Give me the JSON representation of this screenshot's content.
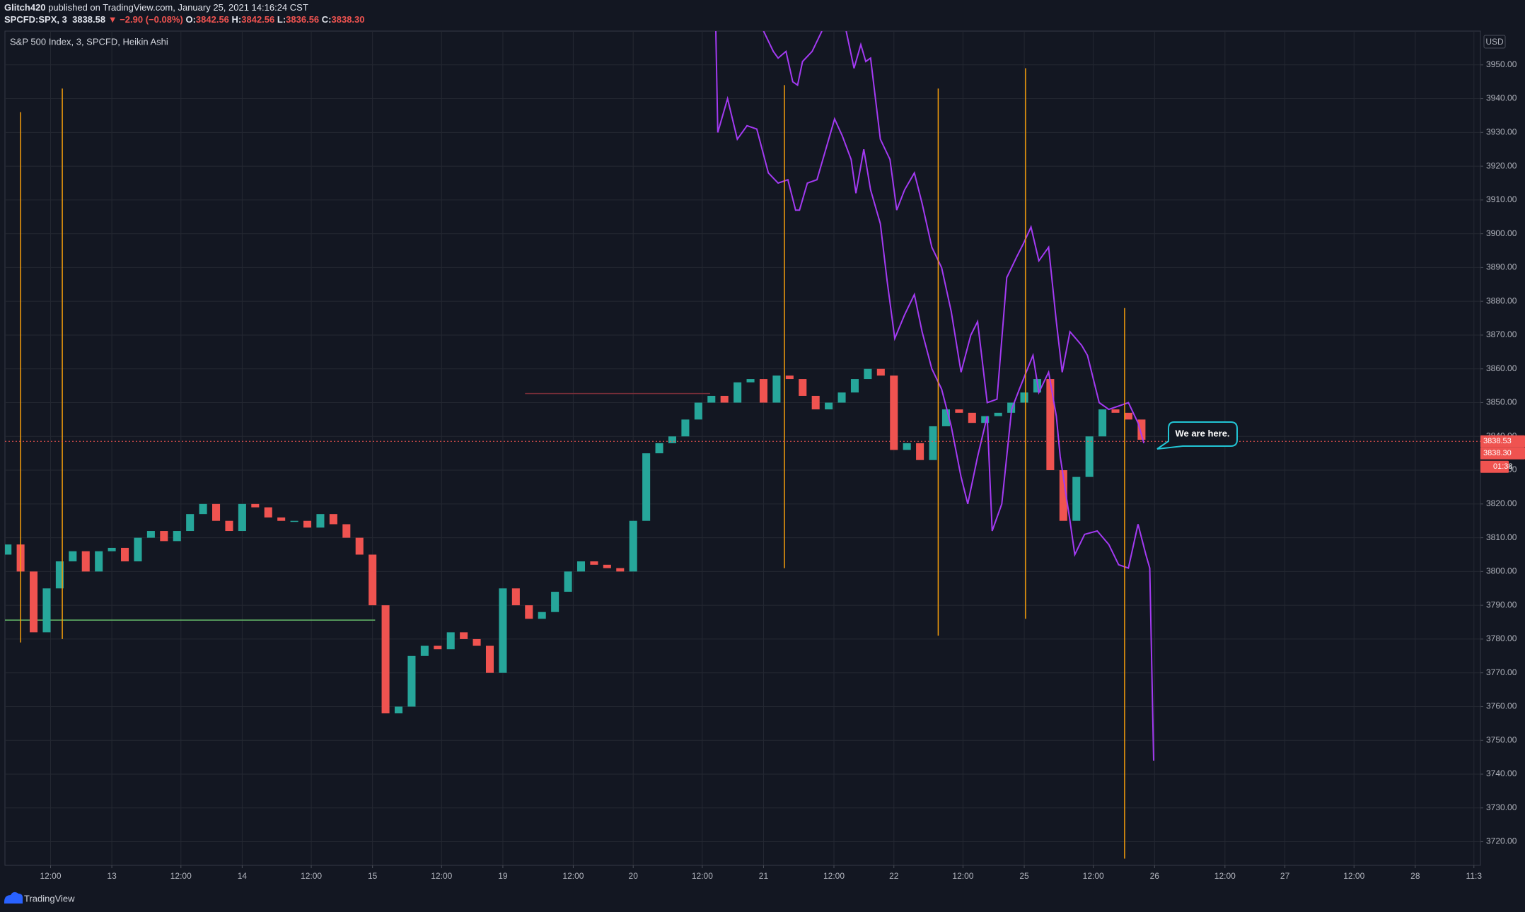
{
  "header": {
    "publisher": "Glitch420",
    "published": "published on TradingView.com, January 25, 2021 14:16:24 CST",
    "symbol": "SPCFD:SPX, 3",
    "last": "3838.58",
    "change": "▼ −2.90 (−0.08%)",
    "ohlc": [
      {
        "label": "O:",
        "value": "3842.56"
      },
      {
        "label": "H:",
        "value": "3842.56"
      },
      {
        "label": "L:",
        "value": "3836.56"
      },
      {
        "label": "C:",
        "value": "3838.30"
      }
    ]
  },
  "footer": {
    "brand": "TradingView"
  },
  "chart_data": {
    "type": "candlestick",
    "legend": "S&P 500 Index, 3, SPCFD, Heikin Ashi",
    "currency": "USD",
    "annotation": "We are here.",
    "up_color": "#26a69a",
    "down_color": "#ef5350",
    "grid": true,
    "xlim": [
      0.18,
      11.5
    ],
    "ylim": [
      3713,
      3960
    ],
    "xticks": [
      {
        "value": 0.53,
        "label": "12:00"
      },
      {
        "value": 1,
        "label": "13"
      },
      {
        "value": 1.53,
        "label": "12:00"
      },
      {
        "value": 2,
        "label": "14"
      },
      {
        "value": 2.53,
        "label": "12:00"
      },
      {
        "value": 3,
        "label": "15"
      },
      {
        "value": 3.53,
        "label": "12:00"
      },
      {
        "value": 4,
        "label": "19"
      },
      {
        "value": 4.54,
        "label": "12:00"
      },
      {
        "value": 5,
        "label": "20"
      },
      {
        "value": 5.53,
        "label": "12:00"
      },
      {
        "value": 6,
        "label": "21"
      },
      {
        "value": 6.54,
        "label": "12:00"
      },
      {
        "value": 7,
        "label": "22"
      },
      {
        "value": 7.53,
        "label": "12:00"
      },
      {
        "value": 8,
        "label": "25"
      },
      {
        "value": 8.53,
        "label": "12:00"
      },
      {
        "value": 9,
        "label": "26"
      },
      {
        "value": 9.54,
        "label": "12:00"
      },
      {
        "value": 10,
        "label": "27"
      },
      {
        "value": 10.53,
        "label": "12:00"
      },
      {
        "value": 11,
        "label": "28"
      },
      {
        "value": 11.45,
        "label": "11:3"
      }
    ],
    "yticks": [
      {
        "value": 3720,
        "label": "3720.00"
      },
      {
        "value": 3730,
        "label": "3730.00"
      },
      {
        "value": 3740,
        "label": "3740.00"
      },
      {
        "value": 3750,
        "label": "3750.00"
      },
      {
        "value": 3760,
        "label": "3760.00"
      },
      {
        "value": 3770,
        "label": "3770.00"
      },
      {
        "value": 3780,
        "label": "3780.00"
      },
      {
        "value": 3790,
        "label": "3790.00"
      },
      {
        "value": 3800,
        "label": "3800.00"
      },
      {
        "value": 3810,
        "label": "3810.00"
      },
      {
        "value": 3820,
        "label": "3820.00"
      },
      {
        "value": 3830,
        "label": "3830.00"
      },
      {
        "value": 3840,
        "label": "3840.00"
      },
      {
        "value": 3850,
        "label": "3850.00"
      },
      {
        "value": 3860,
        "label": "3860.00"
      },
      {
        "value": 3870,
        "label": "3870.00"
      },
      {
        "value": 3880,
        "label": "3880.00"
      },
      {
        "value": 3890,
        "label": "3890.00"
      },
      {
        "value": 3900,
        "label": "3900.00"
      },
      {
        "value": 3910,
        "label": "3910.00"
      },
      {
        "value": 3920,
        "label": "3920.00"
      },
      {
        "value": 3930,
        "label": "3930.00"
      },
      {
        "value": 3940,
        "label": "3940.00"
      },
      {
        "value": 3950,
        "label": "3950.00"
      }
    ],
    "x": [
      0.2,
      0.3,
      0.4,
      0.5,
      0.6,
      0.7,
      0.8,
      0.9,
      1.0,
      1.1,
      1.2,
      1.3,
      1.4,
      1.5,
      1.6,
      1.7,
      1.8,
      1.9,
      2.0,
      2.1,
      2.2,
      2.3,
      2.4,
      2.5,
      2.6,
      2.7,
      2.8,
      2.9,
      3.0,
      3.1,
      3.2,
      3.3,
      3.4,
      3.5,
      3.6,
      3.7,
      3.8,
      3.9,
      4.0,
      4.1,
      4.2,
      4.3,
      4.4,
      4.5,
      4.6,
      4.7,
      4.8,
      4.9,
      5.0,
      5.1,
      5.2,
      5.3,
      5.4,
      5.5,
      5.6,
      5.7,
      5.8,
      5.9,
      6.0,
      6.1,
      6.2,
      6.3,
      6.4,
      6.5,
      6.6,
      6.7,
      6.8,
      6.9,
      7.0,
      7.1,
      7.2,
      7.3,
      7.4,
      7.5,
      7.6,
      7.7,
      7.8,
      7.9,
      8.0,
      8.1,
      8.2,
      8.3,
      8.4,
      8.5,
      8.6,
      8.7,
      8.8,
      8.9
    ],
    "open": [
      3805,
      3808,
      3800,
      3782,
      3795,
      3803,
      3806,
      3800,
      3806,
      3807,
      3803,
      3810,
      3812,
      3809,
      3812,
      3817,
      3820,
      3815,
      3812,
      3820,
      3819,
      3816,
      3815,
      3815,
      3813,
      3817,
      3814,
      3810,
      3805,
      3790,
      3758,
      3760,
      3775,
      3778,
      3777,
      3782,
      3780,
      3778,
      3770,
      3795,
      3790,
      3786,
      3788,
      3794,
      3800,
      3803,
      3802,
      3801,
      3800,
      3815,
      3835,
      3838,
      3840,
      3845,
      3850,
      3852,
      3850,
      3856,
      3857,
      3850,
      3858,
      3857,
      3852,
      3848,
      3850,
      3853,
      3857,
      3860,
      3858,
      3836,
      3838,
      3833,
      3843,
      3848,
      3847,
      3844,
      3846,
      3847,
      3850,
      3853,
      3857,
      3830,
      3815,
      3828,
      3840,
      3848,
      3847,
      3845
    ],
    "close": [
      3808,
      3800,
      3782,
      3795,
      3803,
      3806,
      3800,
      3806,
      3807,
      3803,
      3810,
      3812,
      3809,
      3812,
      3817,
      3820,
      3815,
      3812,
      3820,
      3819,
      3816,
      3815,
      3815,
      3813,
      3817,
      3814,
      3810,
      3805,
      3790,
      3758,
      3760,
      3775,
      3778,
      3777,
      3782,
      3780,
      3778,
      3770,
      3795,
      3790,
      3786,
      3788,
      3794,
      3800,
      3803,
      3802,
      3801,
      3800,
      3815,
      3835,
      3838,
      3840,
      3845,
      3850,
      3852,
      3850,
      3856,
      3857,
      3850,
      3858,
      3857,
      3852,
      3848,
      3850,
      3853,
      3857,
      3860,
      3858,
      3836,
      3838,
      3833,
      3843,
      3848,
      3847,
      3844,
      3846,
      3847,
      3850,
      3853,
      3857,
      3830,
      3815,
      3828,
      3840,
      3848,
      3847,
      3845,
      3839
    ],
    "lines": [
      {
        "color": "#a33af2",
        "x": [
          5.634,
          5.649,
          5.724,
          5.799,
          5.873,
          5.948,
          6.037,
          6.112,
          6.187,
          6.246,
          6.276,
          6.336,
          6.41,
          6.485,
          6.545,
          6.604,
          6.672,
          6.709,
          6.769,
          6.821,
          6.896,
          6.948,
          7.007,
          7.082,
          7.157,
          7.216,
          7.291,
          7.366,
          7.44,
          7.515,
          7.567,
          7.642,
          7.716,
          7.754,
          7.828,
          7.903,
          7.963,
          8.015,
          8.067,
          8.112,
          8.187,
          8.246,
          8.276,
          8.351,
          8.388,
          8.463,
          8.56,
          8.649,
          8.724,
          8.799,
          8.873,
          8.933,
          8.963,
          8.993
        ],
        "values": [
          3960,
          3930,
          3940,
          3928,
          3932,
          3931,
          3918,
          3915,
          3916,
          3907,
          3907,
          3915,
          3916,
          3926,
          3934,
          3929,
          3922,
          3912,
          3925,
          3913,
          3903,
          3886,
          3869,
          3876,
          3882,
          3871,
          3860,
          3854,
          3843,
          3828,
          3820,
          3834,
          3846,
          3812,
          3820,
          3848,
          3854,
          3859,
          3864,
          3853,
          3859,
          3846,
          3834,
          3815,
          3805,
          3811,
          3812,
          3808,
          3802,
          3801,
          3814,
          3805,
          3801,
          3744
        ]
      },
      {
        "color": "#a33af2",
        "x": [
          6.0,
          6.075,
          6.112,
          6.172,
          6.224,
          6.261,
          6.299,
          6.373,
          6.448,
          6.54,
          6.634,
          6.694,
          6.746,
          6.784,
          6.821,
          6.896,
          6.97,
          7.022,
          7.082,
          7.157,
          7.216,
          7.291,
          7.366,
          7.44,
          7.515,
          7.59,
          7.642,
          7.716,
          7.791,
          7.866,
          7.94,
          7.993,
          8.052,
          8.112,
          8.187,
          8.246,
          8.291,
          8.351,
          8.44,
          8.485,
          8.575,
          8.649,
          8.724,
          8.799,
          8.873,
          8.918
        ],
        "values": [
          3960,
          3954,
          3952,
          3954,
          3945,
          3944,
          3951,
          3954,
          3960,
          null,
          3960,
          3949,
          3956,
          3951,
          3952,
          3928,
          3922,
          3907,
          3913,
          3918,
          3909,
          3896,
          3890,
          3877,
          3859,
          3870,
          3874,
          3850,
          3851,
          3887,
          3893,
          3897,
          3902,
          3892,
          3896,
          3874,
          3859,
          3871,
          3867,
          3864,
          3850,
          3848,
          3849,
          3850,
          3844,
          3838
        ]
      }
    ],
    "vlines": [
      {
        "x": 0.3,
        "from": 3779,
        "to": 3936
      },
      {
        "x": 0.62,
        "from": 3780,
        "to": 3943
      },
      {
        "x": 6.16,
        "from": 3801,
        "to": 3944
      },
      {
        "x": 7.34,
        "from": 3781,
        "to": 3943
      },
      {
        "x": 8.01,
        "from": 3786,
        "to": 3949
      },
      {
        "x": 8.77,
        "from": 3715,
        "to": 3878
      }
    ],
    "vline_color": "#f59e0b",
    "hlines": [
      {
        "value": 3785.6,
        "from": 0.18,
        "to": 3.02,
        "color": "#66bb6a"
      },
      {
        "value": 3852.7,
        "from": 4.17,
        "to": 5.59,
        "color": "#7a2e3a"
      }
    ],
    "last_price": {
      "value": 3838.53,
      "label": "3838.53"
    },
    "close_price": {
      "value": 3838.3,
      "label": "3838.30"
    },
    "countdown": "01:38"
  }
}
